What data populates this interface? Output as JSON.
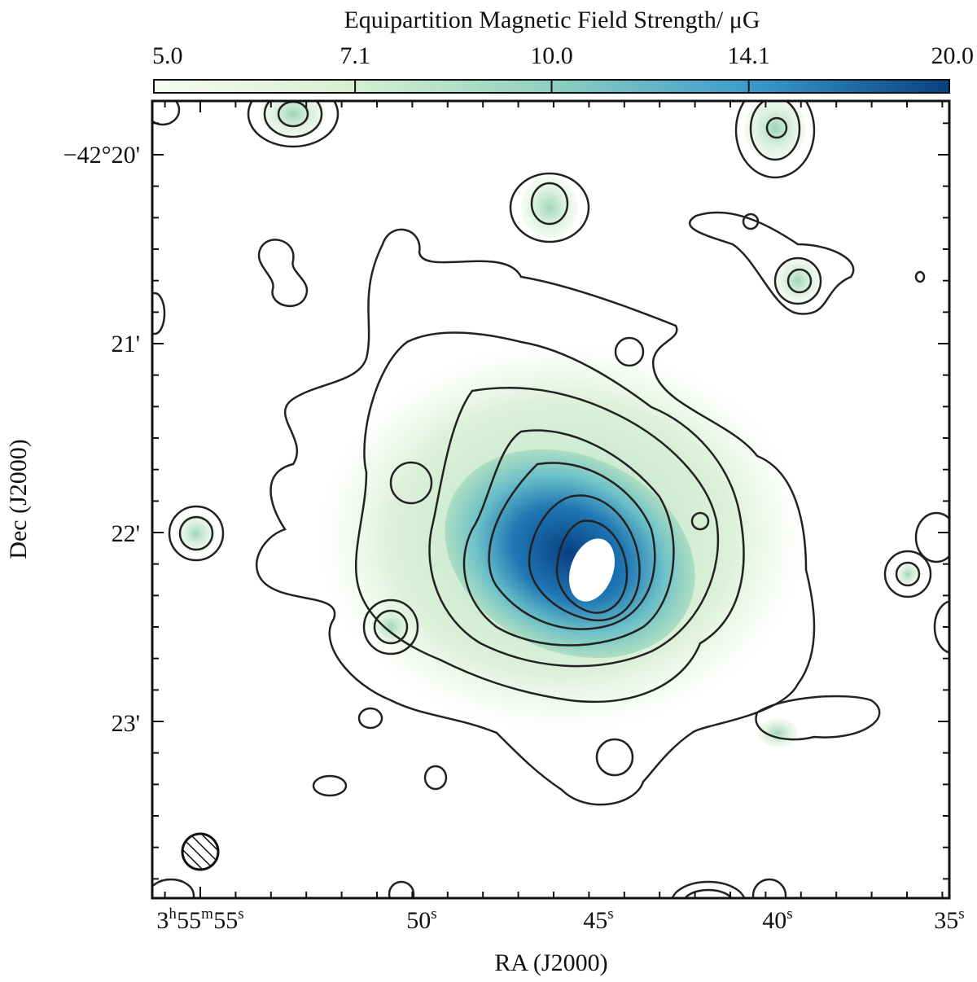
{
  "chart_data": {
    "type": "heatmap",
    "title": "",
    "colorbar": {
      "label": "Equipartition Magnetic Field  Strength/ μG",
      "ticks": [
        "5.0",
        "7.1",
        "10.0",
        "14.1",
        "20.0"
      ],
      "tick_values": [
        5.0,
        7.1,
        10.0,
        14.1,
        20.0
      ],
      "range": [
        5.0,
        20.0
      ],
      "scale": "log",
      "colors": [
        "#f7fcf0",
        "#ccebc5",
        "#7bccc4",
        "#2b8cbe",
        "#084081"
      ]
    },
    "xlabel": "RA (J2000)",
    "ylabel": "Dec (J2000)",
    "x_ticks": [
      {
        "h": "3",
        "m": "55",
        "s": "55"
      },
      {
        "s": "50"
      },
      {
        "s": "45"
      },
      {
        "s": "40"
      },
      {
        "s": "35"
      }
    ],
    "y_ticks": [
      "−42°20'",
      "21'",
      "22'",
      "23'"
    ],
    "contour_color": "#222222",
    "beam": "hatched-circle"
  }
}
